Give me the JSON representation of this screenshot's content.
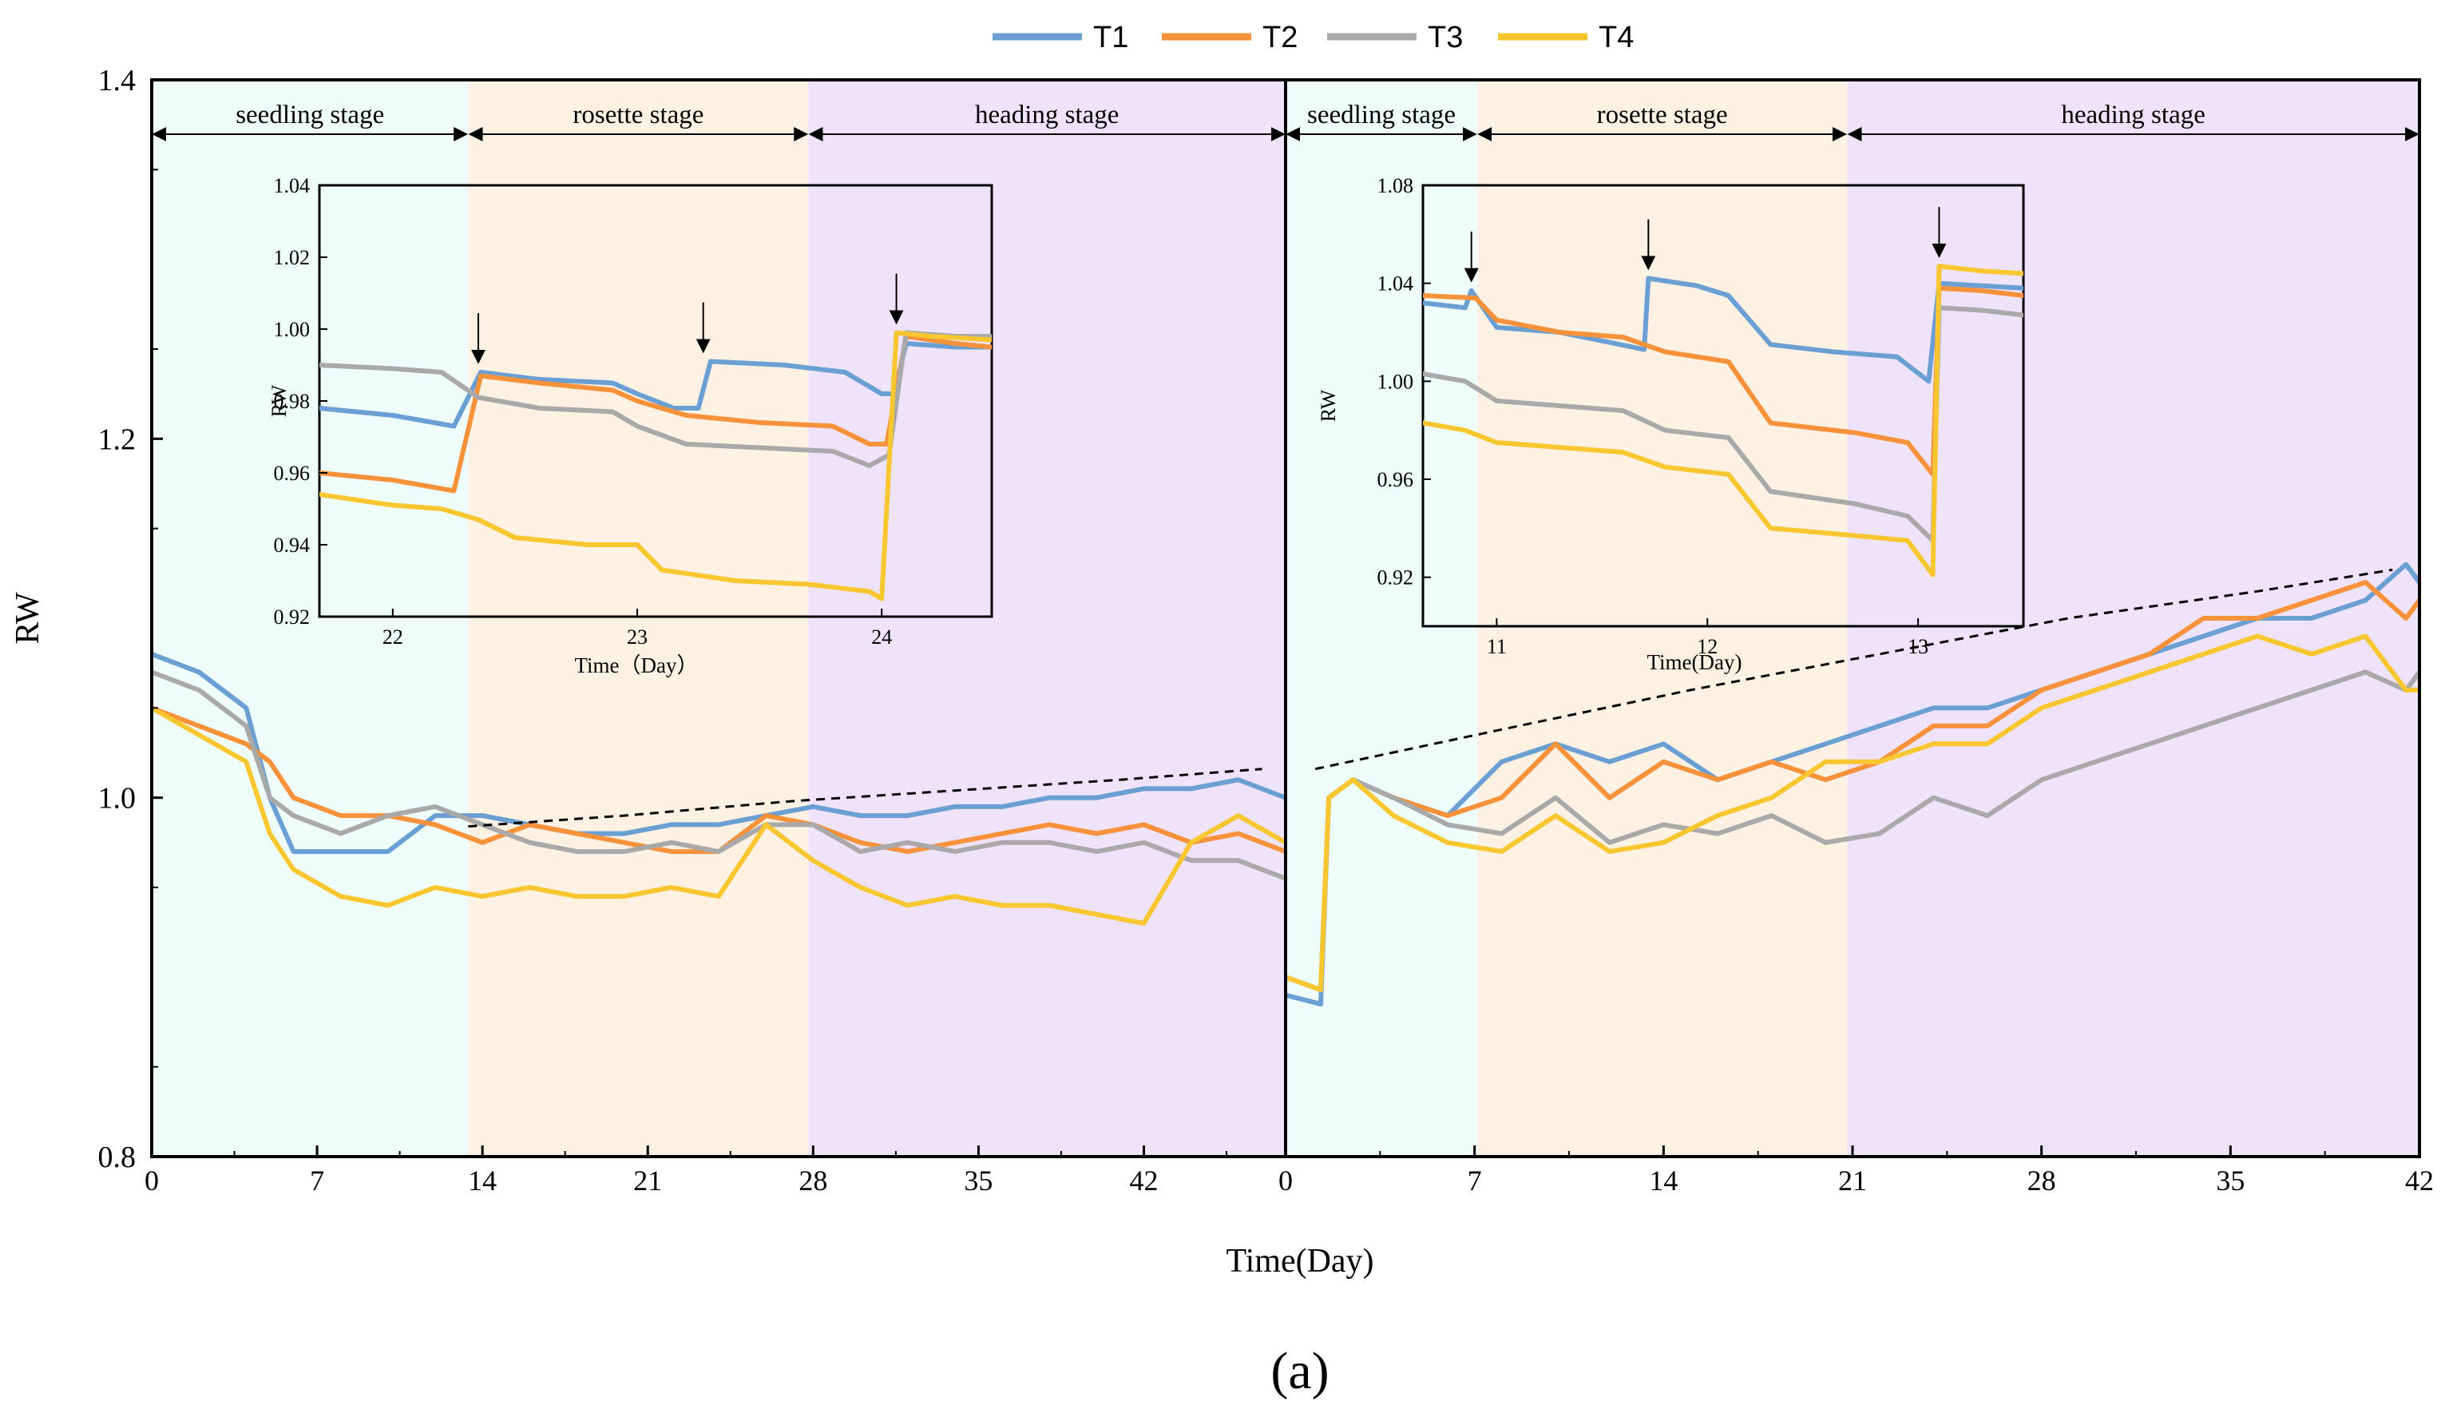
{
  "figure_label": "(a)",
  "colors": {
    "T1": "#6a9fd4",
    "T2": "#f7913a",
    "T3": "#a9a9a9",
    "T4": "#f8c62e",
    "seedling_bg": "#effcfc",
    "rosette_bg": "#fdf1e4",
    "heading_bg": "#efe2fb"
  },
  "chart_data": {
    "type": "line",
    "title": "",
    "xlabel": "Time(Day)",
    "ylabel": "RW",
    "ylim": [
      0.8,
      1.4
    ],
    "yticks": [
      "0.8",
      "1.0",
      "1.2",
      "1.4"
    ],
    "legend": {
      "placement": "top-center",
      "entries": [
        "T1",
        "T2",
        "T3",
        "T4"
      ]
    },
    "panels": [
      {
        "name": "left",
        "xlim": [
          0,
          48
        ],
        "xticks": [
          0,
          7,
          14,
          21,
          28,
          35,
          42
        ],
        "xtick_labels": [
          "0",
          "7",
          "14",
          "21",
          "28",
          "35",
          "42"
        ],
        "stages": [
          {
            "label": "seedling stage",
            "start": 0,
            "end": 13.4
          },
          {
            "label": "rosette stage",
            "start": 13.4,
            "end": 27.8
          },
          {
            "label": "heading stage",
            "start": 27.8,
            "end": 49.5
          }
        ],
        "trend_line": [
          [
            13.4,
            0.984
          ],
          [
            20,
            0.99
          ],
          [
            27,
            0.998
          ],
          [
            34,
            1.004
          ],
          [
            41,
            1.01
          ],
          [
            47,
            1.016
          ]
        ],
        "series": [
          {
            "name": "T1",
            "x": [
              0,
              2,
              4,
              5,
              6,
              8,
              10,
              12,
              14,
              16,
              18,
              20,
              22,
              24,
              26,
              28,
              30,
              32,
              34,
              36,
              38,
              40,
              42,
              44,
              46,
              48
            ],
            "y": [
              1.08,
              1.07,
              1.05,
              1.0,
              0.97,
              0.97,
              0.97,
              0.99,
              0.99,
              0.985,
              0.98,
              0.98,
              0.985,
              0.985,
              0.99,
              0.995,
              0.99,
              0.99,
              0.995,
              0.995,
              1.0,
              1.0,
              1.005,
              1.005,
              1.01,
              1.0
            ]
          },
          {
            "name": "T2",
            "x": [
              0,
              2,
              4,
              5,
              6,
              8,
              10,
              12,
              14,
              16,
              18,
              20,
              22,
              24,
              26,
              28,
              30,
              32,
              34,
              36,
              38,
              40,
              42,
              44,
              46,
              48
            ],
            "y": [
              1.05,
              1.04,
              1.03,
              1.02,
              1.0,
              0.99,
              0.99,
              0.985,
              0.975,
              0.985,
              0.98,
              0.975,
              0.97,
              0.97,
              0.99,
              0.985,
              0.975,
              0.97,
              0.975,
              0.98,
              0.985,
              0.98,
              0.985,
              0.975,
              0.98,
              0.97
            ]
          },
          {
            "name": "T3",
            "x": [
              0,
              2,
              4,
              5,
              6,
              8,
              10,
              12,
              14,
              16,
              18,
              20,
              22,
              24,
              26,
              28,
              30,
              32,
              34,
              36,
              38,
              40,
              42,
              44,
              46,
              48
            ],
            "y": [
              1.07,
              1.06,
              1.04,
              1.0,
              0.99,
              0.98,
              0.99,
              0.995,
              0.985,
              0.975,
              0.97,
              0.97,
              0.975,
              0.97,
              0.985,
              0.985,
              0.97,
              0.975,
              0.97,
              0.975,
              0.975,
              0.97,
              0.975,
              0.965,
              0.965,
              0.955
            ]
          },
          {
            "name": "T4",
            "x": [
              0,
              2,
              4,
              5,
              6,
              8,
              10,
              12,
              14,
              16,
              18,
              20,
              22,
              24,
              26,
              28,
              30,
              32,
              34,
              36,
              38,
              40,
              42,
              44,
              46,
              48
            ],
            "y": [
              1.05,
              1.035,
              1.02,
              0.98,
              0.96,
              0.945,
              0.94,
              0.95,
              0.945,
              0.95,
              0.945,
              0.945,
              0.95,
              0.945,
              0.985,
              0.965,
              0.95,
              0.94,
              0.945,
              0.94,
              0.94,
              0.935,
              0.93,
              0.975,
              0.99,
              0.975
            ]
          }
        ],
        "inset": {
          "xlabel": "Time（Day）",
          "ylabel": "RW",
          "xlim": [
            21.7,
            24.45
          ],
          "ylim": [
            0.92,
            1.04
          ],
          "xticks": [
            "22",
            "23",
            "24"
          ],
          "yticks": [
            "0.92",
            "0.94",
            "0.96",
            "0.98",
            "1.00",
            "1.02",
            "1.04"
          ],
          "arrows_at": [
            22.35,
            23.27,
            24.06
          ],
          "series": [
            {
              "name": "T1",
              "x": [
                21.7,
                22.0,
                22.25,
                22.36,
                22.6,
                22.9,
                23.0,
                23.15,
                23.25,
                23.3,
                23.6,
                23.85,
                24.0,
                24.05,
                24.1,
                24.3,
                24.45
              ],
              "y": [
                0.978,
                0.976,
                0.973,
                0.988,
                0.986,
                0.985,
                0.982,
                0.978,
                0.978,
                0.991,
                0.99,
                0.988,
                0.982,
                0.982,
                0.996,
                0.995,
                0.995
              ]
            },
            {
              "name": "T2",
              "x": [
                21.7,
                22.0,
                22.25,
                22.36,
                22.6,
                22.9,
                23.0,
                23.2,
                23.5,
                23.8,
                23.95,
                24.02,
                24.1,
                24.3,
                24.45
              ],
              "y": [
                0.96,
                0.958,
                0.955,
                0.987,
                0.985,
                0.983,
                0.98,
                0.976,
                0.974,
                0.973,
                0.968,
                0.968,
                0.998,
                0.996,
                0.995
              ]
            },
            {
              "name": "T3",
              "x": [
                21.7,
                22.0,
                22.2,
                22.35,
                22.6,
                22.9,
                23.0,
                23.2,
                23.5,
                23.8,
                23.95,
                24.03,
                24.1,
                24.3,
                24.45
              ],
              "y": [
                0.99,
                0.989,
                0.988,
                0.981,
                0.978,
                0.977,
                0.973,
                0.968,
                0.967,
                0.966,
                0.962,
                0.965,
                0.999,
                0.998,
                0.998
              ]
            },
            {
              "name": "T4",
              "x": [
                21.7,
                22.0,
                22.2,
                22.35,
                22.5,
                22.8,
                23.0,
                23.1,
                23.4,
                23.7,
                23.95,
                24.0,
                24.06,
                24.2,
                24.45
              ],
              "y": [
                0.954,
                0.951,
                0.95,
                0.947,
                0.942,
                0.94,
                0.94,
                0.933,
                0.93,
                0.929,
                0.927,
                0.925,
                0.999,
                0.998,
                0.997
              ]
            }
          ]
        }
      },
      {
        "name": "right",
        "xlim": [
          0,
          42
        ],
        "xticks": [
          0,
          7,
          14,
          21,
          28,
          35,
          42
        ],
        "xtick_labels": [
          "0",
          "7",
          "14",
          "21",
          "28",
          "35",
          "42"
        ],
        "stages": [
          {
            "label": "seedling stage",
            "start": 0,
            "end": 7.1
          },
          {
            "label": "rosette stage",
            "start": 7.1,
            "end": 20.8
          },
          {
            "label": "heading stage",
            "start": 20.8,
            "end": 42
          }
        ],
        "trend_line": [
          [
            1.1,
            1.016
          ],
          [
            8,
            1.038
          ],
          [
            15,
            1.06
          ],
          [
            22,
            1.08
          ],
          [
            29,
            1.1
          ],
          [
            36,
            1.115
          ],
          [
            41,
            1.127
          ]
        ],
        "series": [
          {
            "name": "T1",
            "x": [
              0,
              1.3,
              1.6,
              2.5,
              4,
              6,
              8,
              10,
              12,
              14,
              16,
              18,
              20,
              22,
              24,
              26,
              28,
              30,
              32,
              34,
              36,
              38,
              40,
              41.5,
              42
            ],
            "y": [
              0.89,
              0.885,
              1.0,
              1.01,
              1.0,
              0.99,
              1.02,
              1.03,
              1.02,
              1.03,
              1.01,
              1.02,
              1.03,
              1.04,
              1.05,
              1.05,
              1.06,
              1.07,
              1.08,
              1.09,
              1.1,
              1.1,
              1.11,
              1.13,
              1.12
            ]
          },
          {
            "name": "T2",
            "x": [
              0,
              1.3,
              1.6,
              2.5,
              4,
              6,
              8,
              10,
              12,
              14,
              16,
              18,
              20,
              22,
              24,
              26,
              28,
              30,
              32,
              34,
              36,
              38,
              40,
              41.5,
              42
            ],
            "y": [
              0.9,
              0.893,
              1.0,
              1.01,
              1.0,
              0.99,
              1.0,
              1.03,
              1.0,
              1.02,
              1.01,
              1.02,
              1.01,
              1.02,
              1.04,
              1.04,
              1.06,
              1.07,
              1.08,
              1.1,
              1.1,
              1.11,
              1.12,
              1.1,
              1.11
            ]
          },
          {
            "name": "T3",
            "x": [
              0,
              1.3,
              1.6,
              2.5,
              4,
              6,
              8,
              10,
              12,
              14,
              16,
              18,
              20,
              22,
              24,
              26,
              28,
              30,
              32,
              34,
              36,
              38,
              40,
              41.5,
              42
            ],
            "y": [
              0.9,
              0.893,
              1.0,
              1.01,
              1.0,
              0.985,
              0.98,
              1.0,
              0.975,
              0.985,
              0.98,
              0.99,
              0.975,
              0.98,
              1.0,
              0.99,
              1.01,
              1.02,
              1.03,
              1.04,
              1.05,
              1.06,
              1.07,
              1.06,
              1.07
            ]
          },
          {
            "name": "T4",
            "x": [
              0,
              1.3,
              1.6,
              2.5,
              4,
              6,
              8,
              10,
              12,
              14,
              16,
              18,
              20,
              22,
              24,
              26,
              28,
              30,
              32,
              34,
              36,
              38,
              40,
              41.5,
              42
            ],
            "y": [
              0.9,
              0.893,
              1.0,
              1.01,
              0.99,
              0.975,
              0.97,
              0.99,
              0.97,
              0.975,
              0.99,
              1.0,
              1.02,
              1.02,
              1.03,
              1.03,
              1.05,
              1.06,
              1.07,
              1.08,
              1.09,
              1.08,
              1.09,
              1.06,
              1.06
            ]
          }
        ],
        "inset": {
          "xlabel": "Time(Day)",
          "ylabel": "RW",
          "xlim": [
            10.65,
            13.5
          ],
          "ylim": [
            0.9,
            1.08
          ],
          "xticks": [
            "11",
            "12",
            "13"
          ],
          "yticks": [
            "0.92",
            "0.96",
            "1.00",
            "1.04",
            "1.08"
          ],
          "arrows_at": [
            10.88,
            11.72,
            13.1
          ],
          "series": [
            {
              "name": "T1",
              "x": [
                10.65,
                10.85,
                10.88,
                11.0,
                11.3,
                11.7,
                11.72,
                11.95,
                12.1,
                12.3,
                12.6,
                12.9,
                13.05,
                13.1,
                13.3,
                13.5
              ],
              "y": [
                1.032,
                1.03,
                1.037,
                1.022,
                1.02,
                1.013,
                1.042,
                1.039,
                1.035,
                1.015,
                1.012,
                1.01,
                1.0,
                1.04,
                1.039,
                1.038
              ]
            },
            {
              "name": "T2",
              "x": [
                10.65,
                10.9,
                11.0,
                11.3,
                11.6,
                11.8,
                12.1,
                12.3,
                12.7,
                12.95,
                13.07,
                13.1,
                13.3,
                13.5
              ],
              "y": [
                1.035,
                1.034,
                1.025,
                1.02,
                1.018,
                1.012,
                1.008,
                0.983,
                0.979,
                0.975,
                0.962,
                1.038,
                1.037,
                1.035
              ]
            },
            {
              "name": "T3",
              "x": [
                10.65,
                10.85,
                11.0,
                11.3,
                11.6,
                11.8,
                12.1,
                12.3,
                12.7,
                12.95,
                13.07,
                13.1,
                13.3,
                13.5
              ],
              "y": [
                1.003,
                1.0,
                0.992,
                0.99,
                0.988,
                0.98,
                0.977,
                0.955,
                0.95,
                0.945,
                0.935,
                1.03,
                1.029,
                1.027
              ]
            },
            {
              "name": "T4",
              "x": [
                10.65,
                10.85,
                11.0,
                11.3,
                11.6,
                11.8,
                12.1,
                12.3,
                12.7,
                12.95,
                13.07,
                13.1,
                13.3,
                13.5
              ],
              "y": [
                0.983,
                0.98,
                0.975,
                0.973,
                0.971,
                0.965,
                0.962,
                0.94,
                0.937,
                0.935,
                0.921,
                1.047,
                1.045,
                1.044
              ]
            }
          ]
        }
      }
    ]
  }
}
